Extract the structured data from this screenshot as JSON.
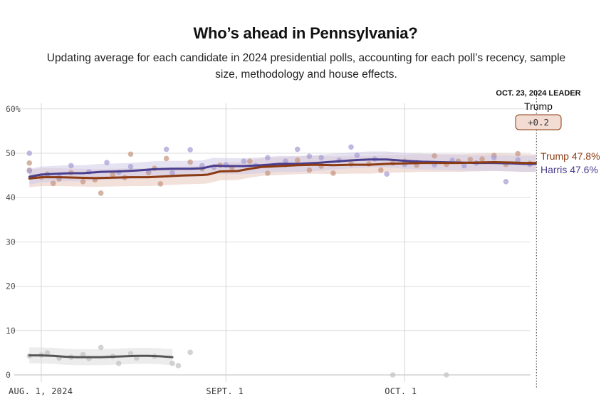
{
  "title": "Who’s ahead in Pennsylvania?",
  "subtitle": "Updating average for each candidate in 2024 presidential polls, accounting for each poll’s recency, sample size, methodology and house effects.",
  "leader": {
    "heading": "OCT. 23, 2024 LEADER",
    "name": "Trump",
    "margin": "+0.2"
  },
  "colors": {
    "trump": "#8b3a12",
    "harris": "#4a3f8f",
    "other": "#555555",
    "trump_band": "#e7c7bb",
    "harris_band": "#cfcbe8",
    "other_band": "#dcdcdc",
    "trump_dot": "#c79a85",
    "harris_dot": "#a8a2d6",
    "other_dot": "#c4c4c4"
  },
  "chart_data": {
    "type": "line",
    "x_unit": "days since Aug. 1, 2024",
    "xlim": [
      0,
      83
    ],
    "ylim": [
      0,
      62
    ],
    "y_ticks": [
      0,
      10,
      20,
      30,
      40,
      50,
      60
    ],
    "y_tick_labels": [
      "0",
      "10",
      "20",
      "30",
      "40",
      "50",
      "60%"
    ],
    "x_ticks": [
      0,
      31,
      61
    ],
    "x_tick_labels": [
      "AUG. 1, 2024",
      "SEPT. 1",
      "OCT. 1"
    ],
    "leader_day": 83,
    "series": [
      {
        "name": "Trump",
        "key": "trump",
        "end_label": "Trump 47.8%",
        "x": [
          -2,
          0,
          3,
          6,
          9,
          12,
          15,
          18,
          21,
          24,
          27,
          28,
          30,
          33,
          35,
          37,
          40,
          43,
          46,
          49,
          52,
          55,
          58,
          61,
          64,
          67,
          70,
          73,
          76,
          79,
          81,
          83
        ],
        "values": [
          44.3,
          44.6,
          44.6,
          44.5,
          44.4,
          44.5,
          44.6,
          44.6,
          44.8,
          45.0,
          45.1,
          45.2,
          45.9,
          46.0,
          46.5,
          46.9,
          47.1,
          47.3,
          47.4,
          47.3,
          47.4,
          47.4,
          47.6,
          47.7,
          47.8,
          47.8,
          47.8,
          47.9,
          48.0,
          47.9,
          47.8,
          47.8
        ],
        "band": 2.0
      },
      {
        "name": "Harris",
        "key": "harris",
        "end_label": "Harris 47.6%",
        "x": [
          -2,
          0,
          3,
          5,
          7,
          10,
          13,
          16,
          19,
          22,
          25,
          27,
          29,
          31,
          34,
          37,
          40,
          43,
          46,
          49,
          52,
          55,
          58,
          61,
          64,
          67,
          70,
          73,
          76,
          79,
          81,
          83
        ],
        "values": [
          44.7,
          45.2,
          45.4,
          45.5,
          45.5,
          45.8,
          45.9,
          46.1,
          46.4,
          46.5,
          46.5,
          46.6,
          47.2,
          47.1,
          47.1,
          47.3,
          47.6,
          47.6,
          47.8,
          48.1,
          48.4,
          48.6,
          48.6,
          48.3,
          48.1,
          48.0,
          47.9,
          47.8,
          47.8,
          47.7,
          47.6,
          47.6
        ],
        "band": 1.8
      },
      {
        "name": "Other",
        "key": "other",
        "end_label": "",
        "x": [
          -2,
          0,
          2,
          4,
          6,
          8,
          10,
          12,
          14,
          16,
          18,
          20,
          22
        ],
        "values": [
          4.4,
          4.4,
          4.3,
          4.1,
          4.0,
          4.0,
          4.0,
          4.1,
          4.2,
          4.3,
          4.3,
          4.2,
          4.0
        ],
        "band": 1.8
      }
    ],
    "polls": {
      "trump": [
        [
          -2,
          47.8
        ],
        [
          -2,
          46.2
        ],
        [
          0,
          44.6
        ],
        [
          1,
          45.3
        ],
        [
          2,
          43.2
        ],
        [
          3,
          44.2
        ],
        [
          5,
          45.6
        ],
        [
          7,
          43.6
        ],
        [
          9,
          44.0
        ],
        [
          10,
          41.0
        ],
        [
          12,
          45.2
        ],
        [
          14,
          44.5
        ],
        [
          15,
          49.8
        ],
        [
          18,
          45.6
        ],
        [
          19,
          46.6
        ],
        [
          20,
          43.1
        ],
        [
          21,
          48.8
        ],
        [
          25,
          48.0
        ],
        [
          27,
          46.5
        ],
        [
          30,
          47.3
        ],
        [
          32,
          46.8
        ],
        [
          35,
          48.2
        ],
        [
          38,
          45.5
        ],
        [
          41,
          47.4
        ],
        [
          43,
          48.4
        ],
        [
          45,
          46.2
        ],
        [
          47,
          47.1
        ],
        [
          49,
          45.5
        ],
        [
          52,
          47.6
        ],
        [
          55,
          47.6
        ],
        [
          57,
          46.2
        ],
        [
          59,
          47.8
        ],
        [
          61,
          48.2
        ],
        [
          63,
          47.3
        ],
        [
          66,
          49.4
        ],
        [
          68,
          47.5
        ],
        [
          70,
          48.2
        ],
        [
          72,
          48.6
        ],
        [
          74,
          48.7
        ],
        [
          76,
          49.5
        ],
        [
          78,
          47.5
        ],
        [
          80,
          49.9
        ],
        [
          82,
          47.7
        ]
      ],
      "harris": [
        [
          -2,
          50.0
        ],
        [
          -2,
          46.0
        ],
        [
          1,
          45.1
        ],
        [
          3,
          44.6
        ],
        [
          5,
          47.2
        ],
        [
          8,
          45.8
        ],
        [
          11,
          47.9
        ],
        [
          13,
          45.7
        ],
        [
          15,
          47.0
        ],
        [
          18,
          46.0
        ],
        [
          21,
          50.9
        ],
        [
          22,
          45.6
        ],
        [
          25,
          50.8
        ],
        [
          27,
          47.2
        ],
        [
          29,
          46.8
        ],
        [
          31,
          47.4
        ],
        [
          34,
          48.2
        ],
        [
          36,
          47.2
        ],
        [
          38,
          49.0
        ],
        [
          41,
          48.2
        ],
        [
          43,
          50.9
        ],
        [
          45,
          49.3
        ],
        [
          47,
          49.0
        ],
        [
          50,
          48.4
        ],
        [
          52,
          51.4
        ],
        [
          53,
          49.5
        ],
        [
          56,
          48.7
        ],
        [
          58,
          45.3
        ],
        [
          61,
          47.5
        ],
        [
          63,
          47.9
        ],
        [
          66,
          47.4
        ],
        [
          69,
          48.4
        ],
        [
          71,
          47.2
        ],
        [
          73,
          47.8
        ],
        [
          76,
          49.0
        ],
        [
          78,
          43.6
        ],
        [
          80,
          48.5
        ],
        [
          82,
          47.5
        ]
      ],
      "other": [
        [
          -2,
          4.3
        ],
        [
          0,
          4.5
        ],
        [
          1,
          5.0
        ],
        [
          3,
          3.8
        ],
        [
          5,
          4.0
        ],
        [
          7,
          4.6
        ],
        [
          8,
          3.7
        ],
        [
          10,
          6.2
        ],
        [
          12,
          4.2
        ],
        [
          13,
          2.6
        ],
        [
          15,
          4.8
        ],
        [
          16,
          3.8
        ],
        [
          19,
          4.2
        ],
        [
          22,
          2.6
        ],
        [
          23,
          2.1
        ],
        [
          25,
          5.1
        ],
        [
          59,
          0.0
        ],
        [
          68,
          0.0
        ]
      ]
    }
  }
}
